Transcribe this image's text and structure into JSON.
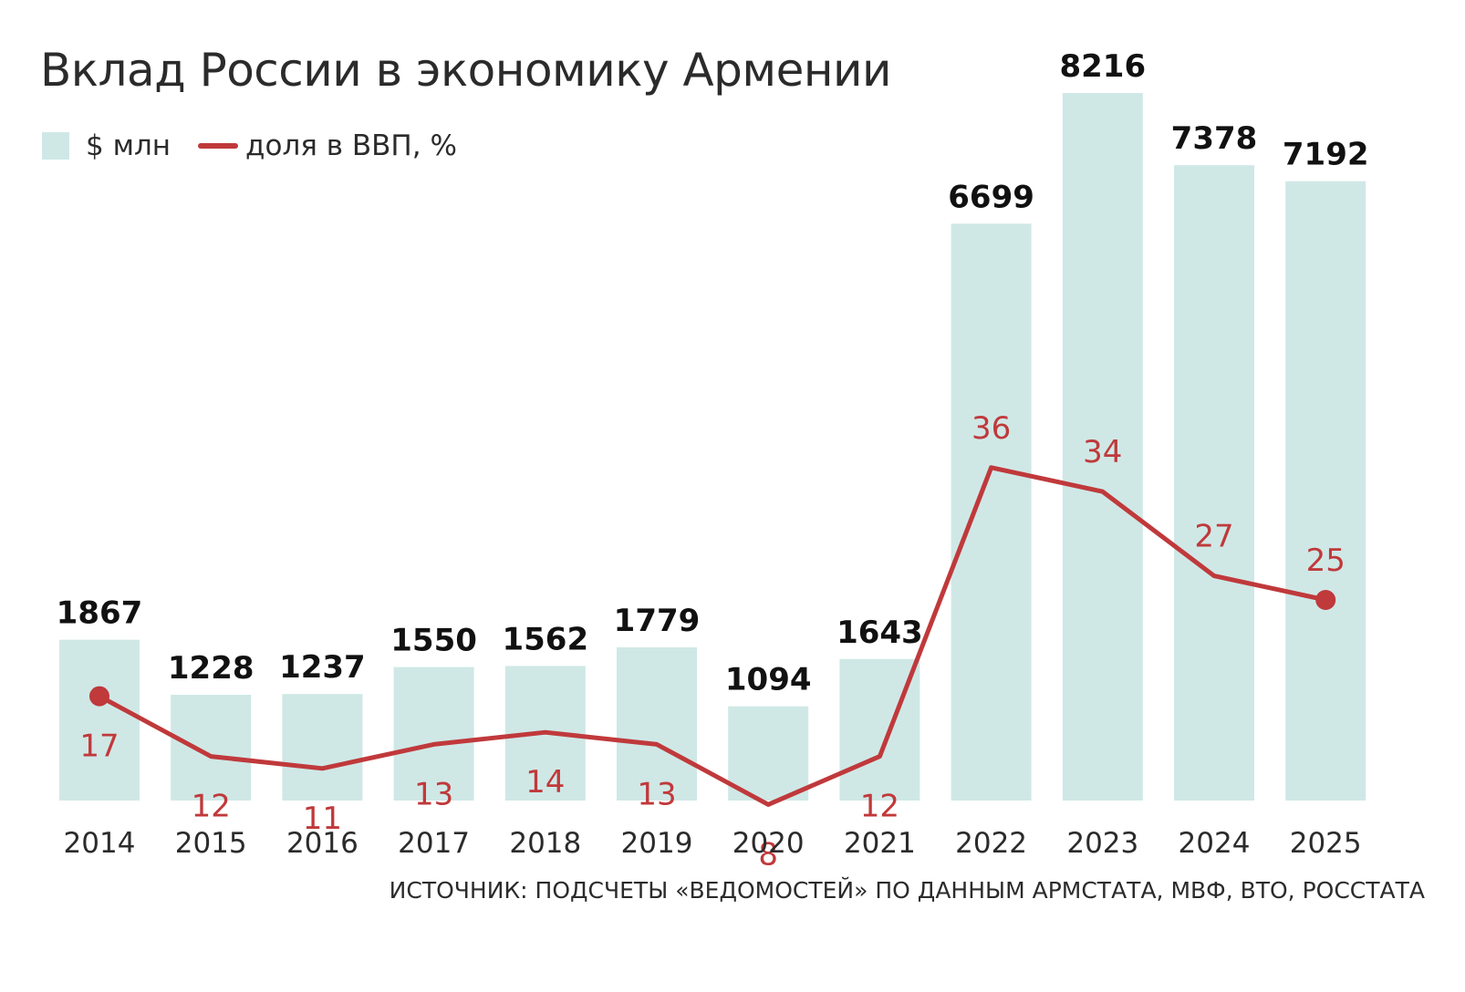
{
  "chart_data": {
    "type": "bar",
    "title": "Вклад России в экономику Армении",
    "categories": [
      "2014",
      "2015",
      "2016",
      "2017",
      "2018",
      "2019",
      "2020",
      "2021",
      "2022",
      "2023",
      "2024",
      "2025"
    ],
    "series": [
      {
        "name": "$ млн",
        "type": "bar",
        "values": [
          1867,
          1228,
          1237,
          1550,
          1562,
          1779,
          1094,
          1643,
          6699,
          8216,
          7378,
          7192
        ]
      },
      {
        "name": "доля в ВВП, %",
        "type": "line",
        "values": [
          17,
          12,
          11,
          13,
          14,
          13,
          8,
          12,
          36,
          34,
          27,
          25
        ]
      }
    ],
    "legend": {
      "position": "top-left"
    },
    "grid": false,
    "ylim": [
      0,
      8216
    ],
    "line_ylim": [
      0,
      36
    ],
    "colors": {
      "bar": "#cfe8e6",
      "line": "#c0393b",
      "text": "#2b2b2b"
    },
    "source": "ИСТОЧНИК: ПОДСЧЕТЫ «ВЕДОМОСТЕЙ» ПО ДАННЫМ АРМСТАТА, МВФ, ВТО, РОССТАТА"
  }
}
